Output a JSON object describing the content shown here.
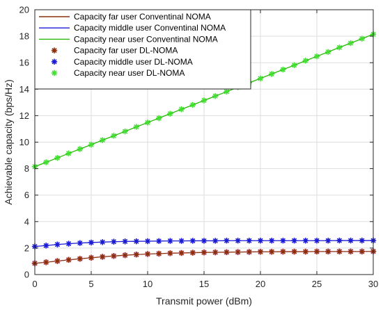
{
  "chart_data": {
    "type": "line",
    "xlabel": "Transmit power (dBm)",
    "ylabel": "Achievable capacity (bps/Hz)",
    "xlim": [
      0,
      30
    ],
    "ylim": [
      0,
      20
    ],
    "x_ticks": [
      0,
      5,
      10,
      15,
      20,
      25,
      30
    ],
    "y_ticks": [
      0,
      2,
      4,
      6,
      8,
      10,
      12,
      14,
      16,
      18,
      20
    ],
    "grid": true,
    "legend_position": "top-left",
    "x": [
      0,
      1,
      2,
      3,
      4,
      5,
      6,
      7,
      8,
      9,
      10,
      11,
      12,
      13,
      14,
      15,
      16,
      17,
      18,
      19,
      20,
      21,
      22,
      23,
      24,
      25,
      26,
      27,
      28,
      29,
      30
    ],
    "series": [
      {
        "name": "Capacity far user Conventinal NOMA",
        "style": "line",
        "color": "#8B2E0B",
        "values": [
          0.85,
          0.93,
          1.02,
          1.11,
          1.19,
          1.27,
          1.34,
          1.4,
          1.46,
          1.51,
          1.55,
          1.58,
          1.61,
          1.63,
          1.65,
          1.67,
          1.68,
          1.69,
          1.7,
          1.71,
          1.72,
          1.72,
          1.73,
          1.73,
          1.73,
          1.74,
          1.74,
          1.74,
          1.74,
          1.74,
          1.75
        ]
      },
      {
        "name": "Capacity middle user Conventinal NOMA",
        "style": "line",
        "color": "#1a1ad6",
        "values": [
          2.12,
          2.19,
          2.27,
          2.33,
          2.38,
          2.42,
          2.45,
          2.48,
          2.5,
          2.51,
          2.52,
          2.53,
          2.54,
          2.54,
          2.55,
          2.55,
          2.55,
          2.56,
          2.56,
          2.56,
          2.56,
          2.56,
          2.56,
          2.56,
          2.56,
          2.56,
          2.56,
          2.57,
          2.57,
          2.57,
          2.57
        ]
      },
      {
        "name": "Capacity near user Conventinal NOMA",
        "style": "line",
        "color": "#22bb00",
        "values": [
          8.15,
          8.48,
          8.81,
          9.15,
          9.48,
          9.81,
          10.15,
          10.48,
          10.81,
          11.15,
          11.48,
          11.81,
          12.15,
          12.48,
          12.81,
          13.15,
          13.48,
          13.81,
          14.15,
          14.48,
          14.81,
          15.15,
          15.48,
          15.81,
          16.15,
          16.48,
          16.81,
          17.15,
          17.48,
          17.81,
          18.15
        ]
      },
      {
        "name": "Capacity far user DL-NOMA",
        "style": "marker",
        "color": "#8B2E0B",
        "values": [
          0.85,
          0.93,
          1.02,
          1.11,
          1.19,
          1.27,
          1.34,
          1.4,
          1.46,
          1.51,
          1.55,
          1.58,
          1.61,
          1.63,
          1.65,
          1.67,
          1.68,
          1.69,
          1.7,
          1.71,
          1.72,
          1.72,
          1.73,
          1.73,
          1.73,
          1.74,
          1.74,
          1.74,
          1.74,
          1.74,
          1.75
        ]
      },
      {
        "name": "Capacity middle user DL-NOMA",
        "style": "marker",
        "color": "#1a1ad6",
        "values": [
          2.12,
          2.19,
          2.27,
          2.33,
          2.38,
          2.42,
          2.45,
          2.48,
          2.5,
          2.51,
          2.52,
          2.53,
          2.54,
          2.54,
          2.55,
          2.55,
          2.55,
          2.56,
          2.56,
          2.56,
          2.56,
          2.56,
          2.56,
          2.56,
          2.56,
          2.56,
          2.56,
          2.57,
          2.57,
          2.57,
          2.57
        ]
      },
      {
        "name": "Capacity near user DL-NOMA",
        "style": "marker",
        "color": "#44dd33",
        "values": [
          8.15,
          8.48,
          8.81,
          9.15,
          9.48,
          9.81,
          10.15,
          10.48,
          10.81,
          11.15,
          11.48,
          11.81,
          12.15,
          12.48,
          12.81,
          13.15,
          13.48,
          13.81,
          14.15,
          14.48,
          14.81,
          15.15,
          15.48,
          15.81,
          16.15,
          16.48,
          16.81,
          17.15,
          17.48,
          17.81,
          18.15
        ]
      }
    ]
  }
}
